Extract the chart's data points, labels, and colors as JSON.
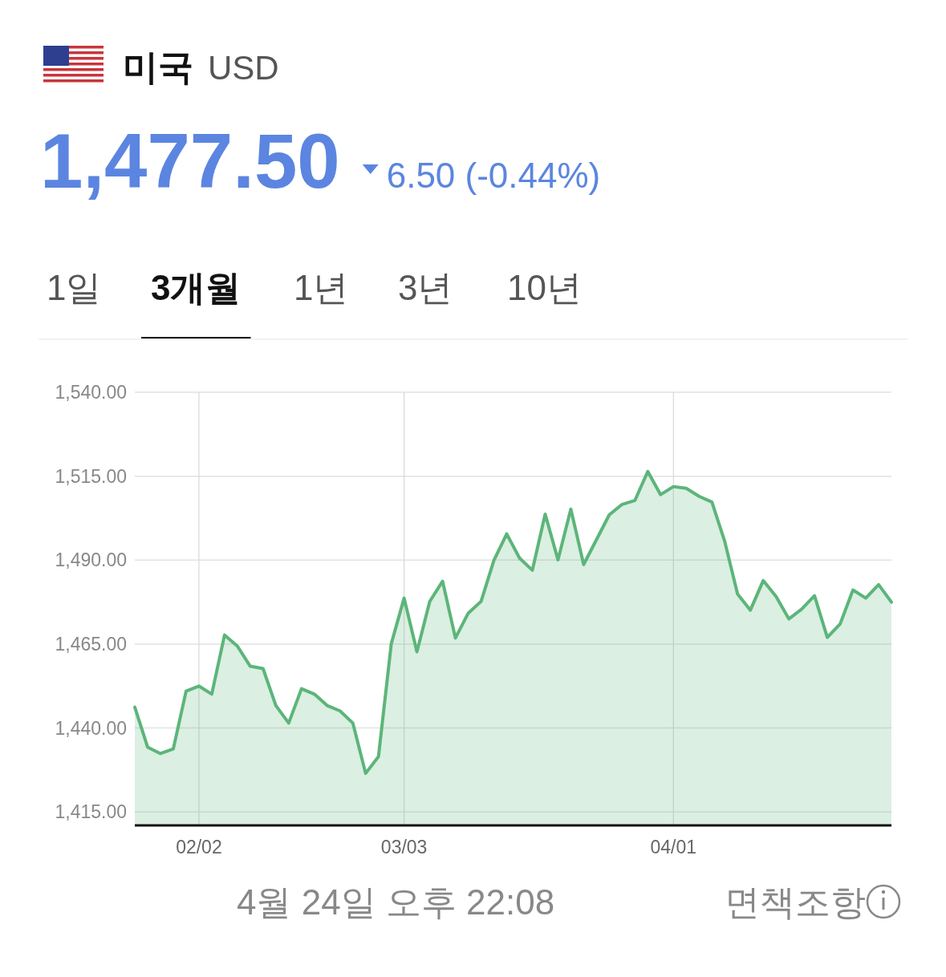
{
  "chart_data": {
    "type": "area",
    "title": "미국",
    "subtitle": "USD",
    "annotations": [
      "1,477.50",
      "6.50 (-0.44%)",
      "1일",
      "3개월",
      "1년",
      "3년",
      "10년",
      "4월 24일 오후 22:08",
      "면책조항"
    ],
    "categories": [
      null,
      null,
      null,
      null,
      null,
      "02/02",
      null,
      null,
      null,
      null,
      null,
      null,
      null,
      null,
      null,
      null,
      null,
      null,
      null,
      null,
      null,
      "03/03",
      null,
      null,
      null,
      null,
      null,
      null,
      null,
      null,
      null,
      null,
      null,
      null,
      null,
      null,
      null,
      null,
      null,
      null,
      null,
      null,
      "04/01",
      null,
      null,
      null,
      null,
      null,
      null,
      null,
      null,
      null,
      null,
      null,
      null,
      null,
      null,
      null,
      null,
      null
    ],
    "series": [
      {
        "color": "#5cb57a",
        "values": [
          1446.2,
          1434.3,
          1432.4,
          1433.8,
          1451.0,
          1452.5,
          1450.1,
          1467.7,
          1464.4,
          1458.4,
          1457.7,
          1446.7,
          1441.5,
          1451.7,
          1450.1,
          1446.7,
          1445.1,
          1441.5,
          1426.5,
          1431.5,
          1465.1,
          1478.7,
          1462.7,
          1477.7,
          1483.7,
          1466.8,
          1474.2,
          1477.7,
          1489.9,
          1497.8,
          1490.6,
          1487.0,
          1503.7,
          1490.1,
          1505.2,
          1488.7,
          1496.1,
          1503.5,
          1506.6,
          1507.8,
          1516.4,
          1509.5,
          1511.9,
          1511.4,
          1509.0,
          1507.3,
          1495.6,
          1479.9,
          1475.1,
          1483.9,
          1479.2,
          1472.5,
          1475.4,
          1479.4,
          1467.0,
          1471.0,
          1481.1,
          1478.7,
          1482.7,
          1477.5
        ]
      }
    ],
    "ylim": [
      1411,
      1540
    ],
    "yticks": [
      {
        "value": 1415,
        "label": "1,415.00"
      },
      {
        "value": 1440,
        "label": "1,440.00"
      },
      {
        "value": 1465,
        "label": "1,465.00"
      },
      {
        "value": 1490,
        "label": "1,490.00"
      },
      {
        "value": 1515,
        "label": "1,515.00"
      },
      {
        "value": 1540,
        "label": "1,540.00"
      }
    ],
    "grid": true
  }
}
